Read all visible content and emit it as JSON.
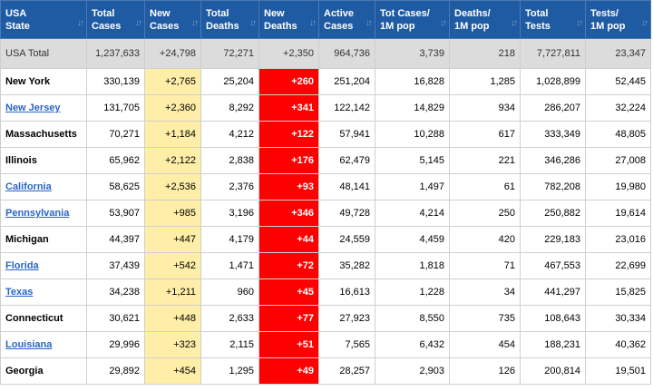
{
  "colors": {
    "header_bg": "#1f5ba3",
    "new_cases_bg": "#ffeea8",
    "new_deaths_bg": "#ff0000",
    "total_row_bg": "#dcdcdc",
    "link": "#2b64c5"
  },
  "icons": {
    "sort": "sort-arrows-icon"
  },
  "headers": [
    {
      "line1": "USA",
      "line2": "State"
    },
    {
      "line1": "Total",
      "line2": "Cases"
    },
    {
      "line1": "New",
      "line2": "Cases"
    },
    {
      "line1": "Total",
      "line2": "Deaths"
    },
    {
      "line1": "New",
      "line2": "Deaths"
    },
    {
      "line1": "Active",
      "line2": "Cases"
    },
    {
      "line1": "Tot Cases/",
      "line2": "1M pop"
    },
    {
      "line1": "Deaths/",
      "line2": "1M pop"
    },
    {
      "line1": "Total",
      "line2": "Tests"
    },
    {
      "line1": "Tests/",
      "line2": "1M pop"
    }
  ],
  "total_row": {
    "state": "USA Total",
    "total_cases": "1,237,633",
    "new_cases": "+24,798",
    "total_deaths": "72,271",
    "new_deaths": "+2,350",
    "active_cases": "964,736",
    "cases_per_m": "3,739",
    "deaths_per_m": "218",
    "total_tests": "7,727,811",
    "tests_per_m": "23,347"
  },
  "rows": [
    {
      "state": "New York",
      "link": false,
      "total_cases": "330,139",
      "new_cases": "+2,765",
      "total_deaths": "25,204",
      "new_deaths": "+260",
      "active_cases": "251,204",
      "cases_per_m": "16,828",
      "deaths_per_m": "1,285",
      "total_tests": "1,028,899",
      "tests_per_m": "52,445"
    },
    {
      "state": "New Jersey",
      "link": true,
      "total_cases": "131,705",
      "new_cases": "+2,360",
      "total_deaths": "8,292",
      "new_deaths": "+341",
      "active_cases": "122,142",
      "cases_per_m": "14,829",
      "deaths_per_m": "934",
      "total_tests": "286,207",
      "tests_per_m": "32,224"
    },
    {
      "state": "Massachusetts",
      "link": false,
      "total_cases": "70,271",
      "new_cases": "+1,184",
      "total_deaths": "4,212",
      "new_deaths": "+122",
      "active_cases": "57,941",
      "cases_per_m": "10,288",
      "deaths_per_m": "617",
      "total_tests": "333,349",
      "tests_per_m": "48,805"
    },
    {
      "state": "Illinois",
      "link": false,
      "total_cases": "65,962",
      "new_cases": "+2,122",
      "total_deaths": "2,838",
      "new_deaths": "+176",
      "active_cases": "62,479",
      "cases_per_m": "5,145",
      "deaths_per_m": "221",
      "total_tests": "346,286",
      "tests_per_m": "27,008"
    },
    {
      "state": "California",
      "link": true,
      "total_cases": "58,625",
      "new_cases": "+2,536",
      "total_deaths": "2,376",
      "new_deaths": "+93",
      "active_cases": "48,141",
      "cases_per_m": "1,497",
      "deaths_per_m": "61",
      "total_tests": "782,208",
      "tests_per_m": "19,980"
    },
    {
      "state": "Pennsylvania",
      "link": true,
      "total_cases": "53,907",
      "new_cases": "+985",
      "total_deaths": "3,196",
      "new_deaths": "+346",
      "active_cases": "49,728",
      "cases_per_m": "4,214",
      "deaths_per_m": "250",
      "total_tests": "250,882",
      "tests_per_m": "19,614"
    },
    {
      "state": "Michigan",
      "link": false,
      "total_cases": "44,397",
      "new_cases": "+447",
      "total_deaths": "4,179",
      "new_deaths": "+44",
      "active_cases": "24,559",
      "cases_per_m": "4,459",
      "deaths_per_m": "420",
      "total_tests": "229,183",
      "tests_per_m": "23,016"
    },
    {
      "state": "Florida",
      "link": true,
      "total_cases": "37,439",
      "new_cases": "+542",
      "total_deaths": "1,471",
      "new_deaths": "+72",
      "active_cases": "35,282",
      "cases_per_m": "1,818",
      "deaths_per_m": "71",
      "total_tests": "467,553",
      "tests_per_m": "22,699"
    },
    {
      "state": "Texas",
      "link": true,
      "total_cases": "34,238",
      "new_cases": "+1,211",
      "total_deaths": "960",
      "new_deaths": "+45",
      "active_cases": "16,613",
      "cases_per_m": "1,228",
      "deaths_per_m": "34",
      "total_tests": "441,297",
      "tests_per_m": "15,825"
    },
    {
      "state": "Connecticut",
      "link": false,
      "total_cases": "30,621",
      "new_cases": "+448",
      "total_deaths": "2,633",
      "new_deaths": "+77",
      "active_cases": "27,923",
      "cases_per_m": "8,550",
      "deaths_per_m": "735",
      "total_tests": "108,643",
      "tests_per_m": "30,334"
    },
    {
      "state": "Louisiana",
      "link": true,
      "total_cases": "29,996",
      "new_cases": "+323",
      "total_deaths": "2,115",
      "new_deaths": "+51",
      "active_cases": "7,565",
      "cases_per_m": "6,432",
      "deaths_per_m": "454",
      "total_tests": "188,231",
      "tests_per_m": "40,362"
    },
    {
      "state": "Georgia",
      "link": false,
      "total_cases": "29,892",
      "new_cases": "+454",
      "total_deaths": "1,295",
      "new_deaths": "+49",
      "active_cases": "28,257",
      "cases_per_m": "2,903",
      "deaths_per_m": "126",
      "total_tests": "200,814",
      "tests_per_m": "19,501"
    }
  ]
}
